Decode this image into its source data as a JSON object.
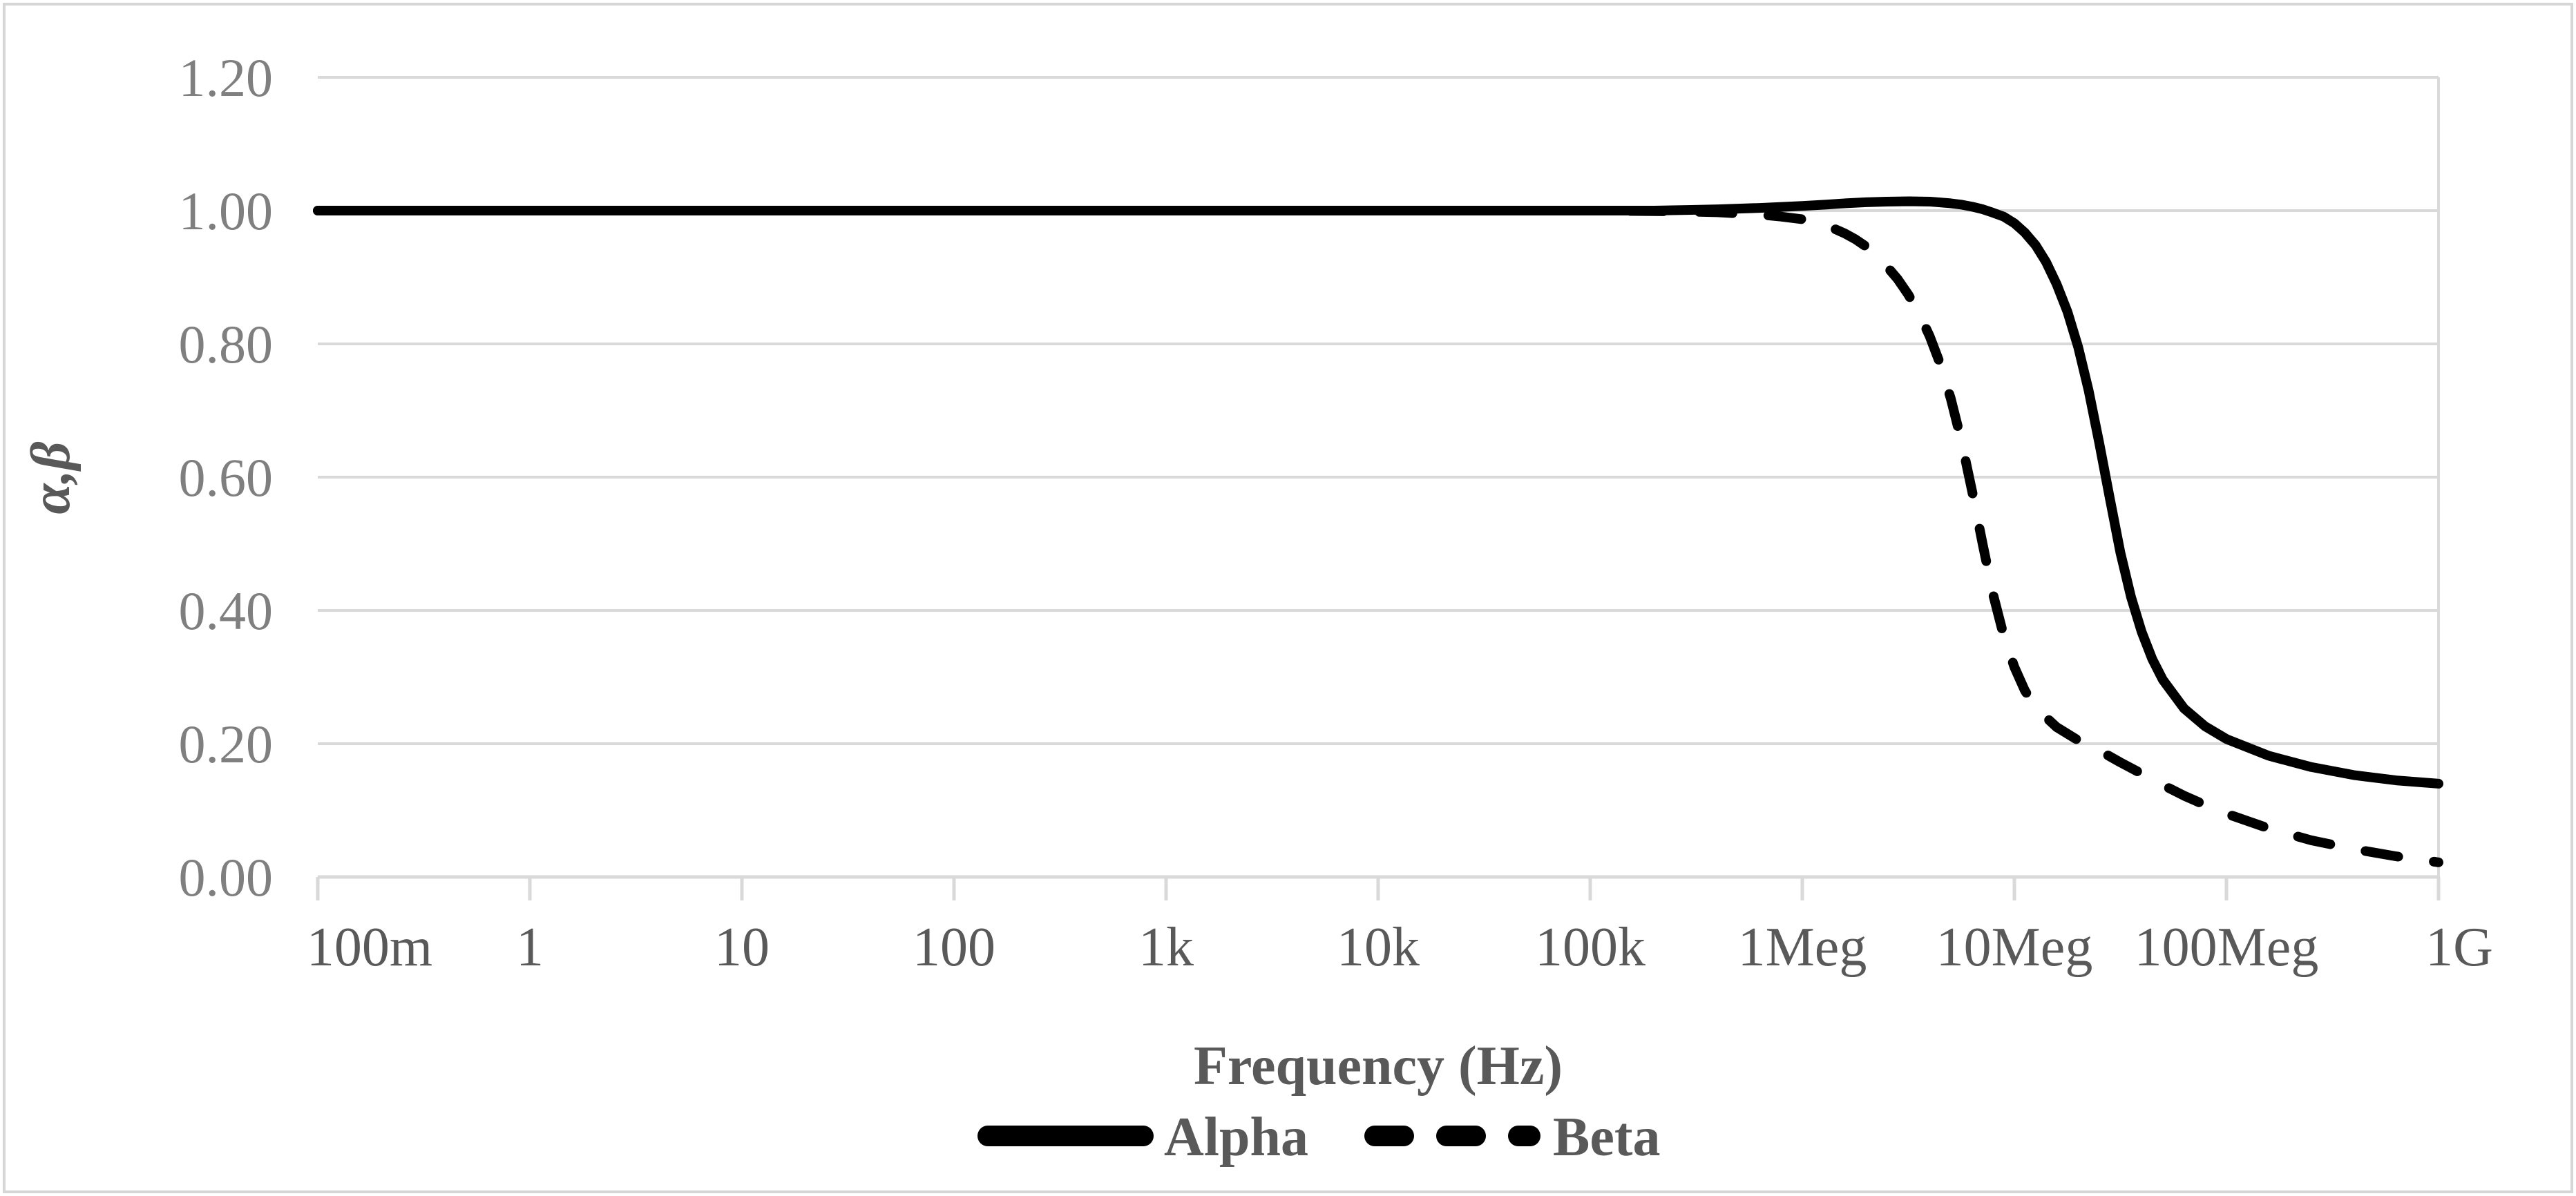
{
  "chart_data": {
    "type": "line",
    "title": "",
    "xlabel": "Frequency (Hz)",
    "ylabel": "α,β",
    "x_scale": "log",
    "x_range_hz": [
      0.1,
      1000000000
    ],
    "x_tick_labels": [
      "100m",
      "1",
      "10",
      "100",
      "1k",
      "10k",
      "100k",
      "1Meg",
      "10Meg",
      "100Meg",
      "1G"
    ],
    "y_tick_labels": [
      "1.20",
      "1.00",
      "0.80",
      "0.60",
      "0.40",
      "0.20",
      "0.00"
    ],
    "y_tick_values": [
      1.2,
      1.0,
      0.8,
      0.6,
      0.4,
      0.2,
      0.0
    ],
    "ylim": [
      0.0,
      1.2
    ],
    "grid": "horizontal",
    "legend_position": "bottom-center",
    "series": [
      {
        "name": "Alpha",
        "line_style": "solid",
        "color": "#000000",
        "points": [
          [
            0.1,
            1.0
          ],
          [
            1,
            1.0
          ],
          [
            10,
            1.0
          ],
          [
            100,
            1.0
          ],
          [
            1000,
            1.0
          ],
          [
            10000,
            1.0
          ],
          [
            100000,
            1.0
          ],
          [
            200000,
            1.0
          ],
          [
            300000,
            1.001
          ],
          [
            400000,
            1.002
          ],
          [
            630000,
            1.004
          ],
          [
            1000000,
            1.007
          ],
          [
            1300000,
            1.009
          ],
          [
            1600000,
            1.011
          ],
          [
            2000000,
            1.0125
          ],
          [
            2500000,
            1.0135
          ],
          [
            3200000,
            1.014
          ],
          [
            4000000,
            1.0135
          ],
          [
            5000000,
            1.011
          ],
          [
            5600000,
            1.009
          ],
          [
            6300000,
            1.006
          ],
          [
            7100000,
            1.002
          ],
          [
            7900000,
            0.997
          ],
          [
            8900000,
            0.991
          ],
          [
            10000000,
            0.981
          ],
          [
            11200000,
            0.967
          ],
          [
            12600000,
            0.948
          ],
          [
            14100000,
            0.923
          ],
          [
            15800000,
            0.89
          ],
          [
            17800000,
            0.848
          ],
          [
            20000000,
            0.795
          ],
          [
            22400000,
            0.73
          ],
          [
            25100000,
            0.652
          ],
          [
            28200000,
            0.568
          ],
          [
            31600000,
            0.487
          ],
          [
            35500000,
            0.42
          ],
          [
            39800000,
            0.368
          ],
          [
            44700000,
            0.327
          ],
          [
            50100000,
            0.296
          ],
          [
            63100000,
            0.253
          ],
          [
            79400000,
            0.226
          ],
          [
            100000000,
            0.207
          ],
          [
            158000000,
            0.182
          ],
          [
            251000000,
            0.165
          ],
          [
            398000000,
            0.153
          ],
          [
            631000000,
            0.145
          ],
          [
            1000000000,
            0.14
          ]
        ]
      },
      {
        "name": "Beta",
        "line_style": "dashed",
        "color": "#000000",
        "points": [
          [
            0.1,
            1.0
          ],
          [
            1,
            1.0
          ],
          [
            10,
            1.0
          ],
          [
            100,
            1.0
          ],
          [
            1000,
            1.0
          ],
          [
            10000,
            1.0
          ],
          [
            100000,
            1.0
          ],
          [
            158000,
            0.9995
          ],
          [
            251000,
            0.999
          ],
          [
            398000,
            0.9975
          ],
          [
            631000,
            0.994
          ],
          [
            794000,
            0.991
          ],
          [
            1000000,
            0.987
          ],
          [
            1120000,
            0.984
          ],
          [
            1260000,
            0.979
          ],
          [
            1410000,
            0.973
          ],
          [
            1580000,
            0.966
          ],
          [
            1780000,
            0.957
          ],
          [
            2000000,
            0.946
          ],
          [
            2240000,
            0.932
          ],
          [
            2510000,
            0.916
          ],
          [
            2820000,
            0.897
          ],
          [
            3160000,
            0.874
          ],
          [
            3550000,
            0.846
          ],
          [
            3980000,
            0.812
          ],
          [
            4470000,
            0.77
          ],
          [
            5010000,
            0.718
          ],
          [
            5620000,
            0.655
          ],
          [
            6310000,
            0.58
          ],
          [
            7080000,
            0.5
          ],
          [
            7940000,
            0.424
          ],
          [
            8910000,
            0.362
          ],
          [
            10000000,
            0.315
          ],
          [
            11200000,
            0.28
          ],
          [
            12600000,
            0.254
          ],
          [
            15800000,
            0.225
          ],
          [
            20000000,
            0.205
          ],
          [
            25100000,
            0.19
          ],
          [
            31600000,
            0.172
          ],
          [
            39800000,
            0.155
          ],
          [
            50100000,
            0.138
          ],
          [
            63100000,
            0.122
          ],
          [
            79400000,
            0.108
          ],
          [
            100000000,
            0.095
          ],
          [
            158000000,
            0.073
          ],
          [
            251000000,
            0.055
          ],
          [
            398000000,
            0.042
          ],
          [
            631000000,
            0.031
          ],
          [
            1000000000,
            0.022
          ]
        ]
      }
    ]
  },
  "styles": {
    "background": "#ffffff",
    "frame_border_color": "#d6d6d6",
    "grid_color": "#d9d9d9",
    "axis_color": "#d9d9d9",
    "x_tick_text_color": "#595959",
    "y_tick_text_color": "#7f7f7f",
    "title_text_color": "#595959",
    "series_line_color": "#000000"
  }
}
